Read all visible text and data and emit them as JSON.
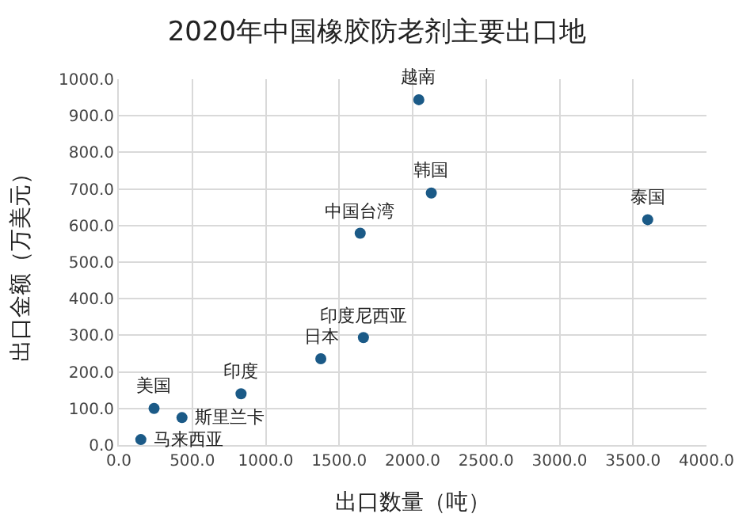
{
  "chart_data": {
    "type": "scatter",
    "title": "2020年中国橡胶防老剂主要出口地",
    "xlabel": "出口数量（吨）",
    "ylabel": "出口金额（万美元）",
    "x": [
      2042,
      2127,
      3600,
      1643,
      1665,
      1375,
      832,
      240,
      430,
      150
    ],
    "series": [
      {
        "color": "#1b5a87",
        "values": [
          944,
          689,
          616,
          579,
          294,
          236,
          140,
          100,
          75,
          15
        ]
      }
    ],
    "annotations": [
      {
        "text": "越南",
        "x": 2042,
        "y": 944
      },
      {
        "text": "韩国",
        "x": 2127,
        "y": 689
      },
      {
        "text": "泰国",
        "x": 3600,
        "y": 616
      },
      {
        "text": "中国台湾",
        "x": 1643,
        "y": 579
      },
      {
        "text": "印度尼西亚",
        "x": 1665,
        "y": 294
      },
      {
        "text": "日本",
        "x": 1375,
        "y": 236
      },
      {
        "text": "印度",
        "x": 832,
        "y": 140
      },
      {
        "text": "美国",
        "x": 240,
        "y": 100
      },
      {
        "text": "斯里兰卡",
        "x": 430,
        "y": 75
      },
      {
        "text": "马来西亚",
        "x": 150,
        "y": 15
      }
    ],
    "xlim": [
      0,
      4000
    ],
    "xticks": [
      {
        "value": 0,
        "label": "0.0"
      },
      {
        "value": 500,
        "label": "500.0"
      },
      {
        "value": 1000,
        "label": "1000.0"
      },
      {
        "value": 1500,
        "label": "1500.0"
      },
      {
        "value": 2000,
        "label": "2000.0"
      },
      {
        "value": 2500,
        "label": "2500.0"
      },
      {
        "value": 3000,
        "label": "3000.0"
      },
      {
        "value": 3500,
        "label": "3500.0"
      },
      {
        "value": 4000,
        "label": "4000.0"
      }
    ],
    "ylim": [
      0,
      1000
    ],
    "yticks": [
      {
        "value": 0,
        "label": "0.0"
      },
      {
        "value": 100,
        "label": "100.0"
      },
      {
        "value": 200,
        "label": "200.0"
      },
      {
        "value": 300,
        "label": "300.0"
      },
      {
        "value": 400,
        "label": "400.0"
      },
      {
        "value": 500,
        "label": "500.0"
      },
      {
        "value": 600,
        "label": "600.0"
      },
      {
        "value": 700,
        "label": "700.0"
      },
      {
        "value": 800,
        "label": "800.0"
      },
      {
        "value": 900,
        "label": "900.0"
      },
      {
        "value": 1000,
        "label": "1000.0"
      }
    ],
    "grid": true,
    "marker": "circle"
  }
}
